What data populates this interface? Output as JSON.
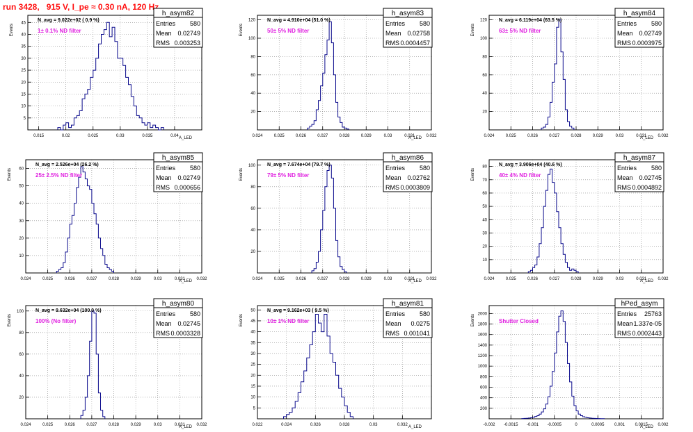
{
  "page": {
    "title": "run 3428,   915 V, I_pe ≈ 0.30 nA, 120 Hz"
  },
  "colors": {
    "title": "#ff1010",
    "histogram_line": "#0a0a8c",
    "label_text": "#e020e0",
    "grid": "#8a8a8a"
  },
  "chart_data": [
    {
      "type": "histogram",
      "name": "h_asym82",
      "stats": {
        "entries": "580",
        "mean": "0.02749",
        "rms": "0.003253"
      },
      "navg_text": "N_avg = 9.022e+02 ( 0.9 %)",
      "label": "1± 0.1% ND filter",
      "xlabel": "A_LED",
      "ylabel": "Events",
      "xlim": [
        0.013,
        0.045
      ],
      "ylim": [
        0,
        48
      ],
      "xticks": [
        "0.015",
        "0.02",
        "0.025",
        "0.03",
        "0.035",
        "0.04"
      ],
      "xtick_values": [
        0.015,
        0.02,
        0.025,
        0.03,
        0.035,
        0.04
      ],
      "yticks": [
        "5",
        "10",
        "15",
        "20",
        "25",
        "30",
        "35",
        "40",
        "45"
      ],
      "ytick_values": [
        5,
        10,
        15,
        20,
        25,
        30,
        35,
        40,
        45
      ],
      "bin_width": 0.0005,
      "bins_start": 0.0185,
      "counts": [
        1,
        0,
        2,
        3,
        1,
        2,
        5,
        6,
        8,
        13,
        15,
        17,
        22,
        25,
        30,
        36,
        40,
        42,
        45,
        39,
        43,
        37,
        30,
        30,
        27,
        22,
        19,
        14,
        10,
        6,
        5,
        3,
        2,
        3,
        1,
        2,
        1,
        0,
        1
      ]
    },
    {
      "type": "histogram",
      "name": "h_asym83",
      "stats": {
        "entries": "580",
        "mean": "0.02758",
        "rms": "0.0004457"
      },
      "navg_text": "N_avg = 4.910e+04 (51.0 %)",
      "label": "50± 5% ND filter",
      "xlabel": "A_LED",
      "ylabel": "Events",
      "xlim": [
        0.024,
        0.032
      ],
      "ylim": [
        0,
        125
      ],
      "xticks": [
        "0.024",
        "0.025",
        "0.026",
        "0.027",
        "0.028",
        "0.029",
        "0.03",
        "0.031",
        "0.032"
      ],
      "xtick_values": [
        0.024,
        0.025,
        0.026,
        0.027,
        0.028,
        0.029,
        0.03,
        0.031,
        0.032
      ],
      "yticks": [
        "20",
        "40",
        "60",
        "80",
        "100",
        "120"
      ],
      "ytick_values": [
        20,
        40,
        60,
        80,
        100,
        120
      ],
      "bin_width": 0.0001,
      "bins_start": 0.0263,
      "counts": [
        2,
        4,
        6,
        10,
        22,
        32,
        48,
        62,
        82,
        98,
        118,
        95,
        60,
        30,
        14,
        8,
        3,
        2,
        1
      ]
    },
    {
      "type": "histogram",
      "name": "h_asym84",
      "stats": {
        "entries": "580",
        "mean": "0.02749",
        "rms": "0.0003975"
      },
      "navg_text": "N_avg = 6.119e+04 (63.5 %)",
      "label": "63± 5% ND filter",
      "xlabel": "A_LED",
      "ylabel": "Events",
      "xlim": [
        0.024,
        0.032
      ],
      "ylim": [
        0,
        125
      ],
      "xticks": [
        "0.024",
        "0.025",
        "0.026",
        "0.027",
        "0.028",
        "0.029",
        "0.03",
        "0.031",
        "0.032"
      ],
      "xtick_values": [
        0.024,
        0.025,
        0.026,
        0.027,
        0.028,
        0.029,
        0.03,
        0.031,
        0.032
      ],
      "yticks": [
        "20",
        "40",
        "60",
        "80",
        "100",
        "120"
      ],
      "ytick_values": [
        20,
        40,
        60,
        80,
        100,
        120
      ],
      "bin_width": 0.0001,
      "bins_start": 0.0264,
      "counts": [
        2,
        3,
        6,
        14,
        30,
        52,
        72,
        112,
        120,
        85,
        55,
        22,
        9,
        4,
        2
      ]
    },
    {
      "type": "histogram",
      "name": "h_asym85",
      "stats": {
        "entries": "580",
        "mean": "0.02749",
        "rms": "0.000656"
      },
      "navg_text": "N_avg = 2.526e+04 (26.2 %)",
      "label": "25± 2.5% ND filter",
      "xlabel": "A_LED",
      "ylabel": "Events",
      "xlim": [
        0.024,
        0.032
      ],
      "ylim": [
        0,
        65
      ],
      "xticks": [
        "0.024",
        "0.025",
        "0.026",
        "0.027",
        "0.028",
        "0.029",
        "0.03",
        "0.031",
        "0.032"
      ],
      "xtick_values": [
        0.024,
        0.025,
        0.026,
        0.027,
        0.028,
        0.029,
        0.03,
        0.031,
        0.032
      ],
      "yticks": [
        "10",
        "20",
        "30",
        "40",
        "50",
        "60"
      ],
      "ytick_values": [
        10,
        20,
        30,
        40,
        50,
        60
      ],
      "bin_width": 0.0001,
      "bins_start": 0.0254,
      "counts": [
        1,
        2,
        3,
        6,
        12,
        20,
        28,
        33,
        40,
        49,
        55,
        61,
        58,
        54,
        50,
        48,
        40,
        34,
        28,
        20,
        14,
        10,
        5,
        3,
        2,
        1
      ]
    },
    {
      "type": "histogram",
      "name": "h_asym86",
      "stats": {
        "entries": "580",
        "mean": "0.02762",
        "rms": "0.0003809"
      },
      "navg_text": "N_avg = 7.674e+04 (79.7 %)",
      "label": "79± 5% ND filter",
      "xlabel": "A_LED",
      "ylabel": "Events",
      "xlim": [
        0.024,
        0.032
      ],
      "ylim": [
        0,
        105
      ],
      "xticks": [
        "0.024",
        "0.025",
        "0.026",
        "0.027",
        "0.028",
        "0.029",
        "0.03",
        "0.031",
        "0.032"
      ],
      "xtick_values": [
        0.024,
        0.025,
        0.026,
        0.027,
        0.028,
        0.029,
        0.03,
        0.031,
        0.032
      ],
      "yticks": [
        "20",
        "40",
        "60",
        "80",
        "100"
      ],
      "ytick_values": [
        20,
        40,
        60,
        80,
        100
      ],
      "bin_width": 0.0001,
      "bins_start": 0.0265,
      "counts": [
        2,
        4,
        10,
        20,
        40,
        58,
        80,
        95,
        100,
        88,
        60,
        30,
        15,
        6,
        3,
        1
      ]
    },
    {
      "type": "histogram",
      "name": "h_asym87",
      "stats": {
        "entries": "580",
        "mean": "0.02745",
        "rms": "0.0004892"
      },
      "navg_text": "N_avg = 3.906e+04 (40.6 %)",
      "label": "40± 4% ND filter",
      "xlabel": "A_LED",
      "ylabel": "Events",
      "xlim": [
        0.024,
        0.032
      ],
      "ylim": [
        0,
        85
      ],
      "xticks": [
        "0.024",
        "0.025",
        "0.026",
        "0.027",
        "0.028",
        "0.029",
        "0.03",
        "0.031",
        "0.032"
      ],
      "xtick_values": [
        0.024,
        0.025,
        0.026,
        0.027,
        0.028,
        0.029,
        0.03,
        0.031,
        0.032
      ],
      "yticks": [
        "10",
        "20",
        "30",
        "40",
        "50",
        "60",
        "70",
        "80"
      ],
      "ytick_values": [
        10,
        20,
        30,
        40,
        50,
        60,
        70,
        80
      ],
      "bin_width": 0.0001,
      "bins_start": 0.0258,
      "counts": [
        1,
        2,
        4,
        6,
        12,
        22,
        34,
        50,
        62,
        74,
        78,
        68,
        60,
        46,
        34,
        22,
        14,
        8,
        4,
        2,
        3,
        2,
        1
      ]
    },
    {
      "type": "histogram",
      "name": "h_asym80",
      "stats": {
        "entries": "580",
        "mean": "0.02745",
        "rms": "0.0003328"
      },
      "navg_text": "N_avg = 9.632e+04 (100.0 %)",
      "label": "100% (No filter)",
      "xlabel": "A_LED",
      "ylabel": "Events",
      "xlim": [
        0.024,
        0.032
      ],
      "ylim": [
        0,
        105
      ],
      "xticks": [
        "0.024",
        "0.025",
        "0.026",
        "0.027",
        "0.028",
        "0.029",
        "0.03",
        "0.031",
        "0.032"
      ],
      "xtick_values": [
        0.024,
        0.025,
        0.026,
        0.027,
        0.028,
        0.029,
        0.03,
        0.031,
        0.032
      ],
      "yticks": [
        "20",
        "40",
        "60",
        "80",
        "100"
      ],
      "ytick_values": [
        20,
        40,
        60,
        80,
        100
      ],
      "bin_width": 0.0001,
      "bins_start": 0.0265,
      "counts": [
        3,
        8,
        20,
        40,
        72,
        100,
        98,
        60,
        24,
        8,
        2
      ]
    },
    {
      "type": "histogram",
      "name": "h_asym81",
      "stats": {
        "entries": "580",
        "mean": "0.0275",
        "rms": "0.001041"
      },
      "navg_text": "N_avg = 9.162e+03 ( 9.5 %)",
      "label": "10± 1% ND filter",
      "xlabel": "A_LED",
      "ylabel": "Events",
      "xlim": [
        0.022,
        0.034
      ],
      "ylim": [
        0,
        52
      ],
      "xticks": [
        "0.022",
        "0.024",
        "0.026",
        "0.028",
        "0.03",
        "0.032"
      ],
      "xtick_values": [
        0.022,
        0.024,
        0.026,
        0.028,
        0.03,
        0.032
      ],
      "yticks": [
        "5",
        "10",
        "15",
        "20",
        "25",
        "30",
        "35",
        "40",
        "45",
        "50"
      ],
      "ytick_values": [
        5,
        10,
        15,
        20,
        25,
        30,
        35,
        40,
        45,
        50
      ],
      "bin_width": 0.0002,
      "bins_start": 0.0238,
      "counts": [
        1,
        2,
        3,
        5,
        8,
        12,
        17,
        22,
        28,
        34,
        40,
        48,
        44,
        40,
        48,
        38,
        30,
        26,
        20,
        14,
        10,
        6,
        3,
        1
      ]
    },
    {
      "type": "histogram",
      "name": "hPed_asym",
      "stats": {
        "entries": "25763",
        "mean": "-1.337e-05",
        "rms": "0.0002443"
      },
      "navg_text": "",
      "label": "Shutter Closed",
      "xlabel": "A_LED",
      "ylabel": "Events",
      "xlim": [
        -0.002,
        0.002
      ],
      "ylim": [
        0,
        2150
      ],
      "xticks": [
        "-0.002",
        "-0.0015",
        "-0.001",
        "-0.0005",
        "0",
        "0.0005",
        "0.001",
        "0.0015",
        "0.002"
      ],
      "xtick_values": [
        -0.002,
        -0.0015,
        -0.001,
        -0.0005,
        0,
        0.0005,
        0.001,
        0.0015,
        0.002
      ],
      "yticks": [
        "200",
        "400",
        "600",
        "800",
        "1000",
        "1200",
        "1400",
        "1600",
        "1800",
        "2000"
      ],
      "ytick_values": [
        200,
        400,
        600,
        800,
        1000,
        1200,
        1400,
        1600,
        1800,
        2000
      ],
      "bin_width": 5e-05,
      "bins_start": -0.00125,
      "counts": [
        5,
        8,
        10,
        15,
        20,
        30,
        45,
        60,
        90,
        130,
        190,
        280,
        420,
        620,
        900,
        1250,
        1650,
        1950,
        2050,
        1850,
        1450,
        1050,
        700,
        430,
        250,
        150,
        90,
        60,
        40,
        30,
        20,
        15,
        10,
        8,
        6,
        5,
        3,
        2
      ]
    }
  ]
}
